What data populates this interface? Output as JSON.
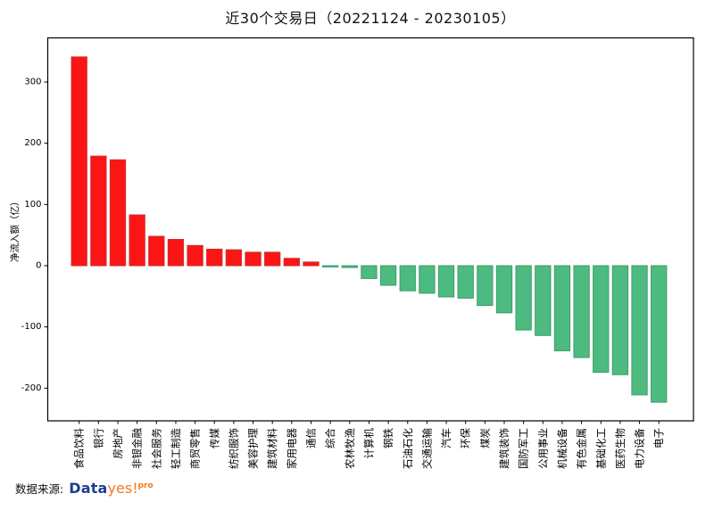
{
  "title": "近30个交易日（20221124 - 20230105）",
  "footer": {
    "source_label": "数据来源:",
    "brand_part1": "Data",
    "brand_part2": "yes!",
    "brand_sup": "pro"
  },
  "chart_data": {
    "type": "bar",
    "title": "近30个交易日（20221124 - 20230105）",
    "xlabel": "",
    "ylabel": "净流入额（亿）",
    "categories": [
      "食品饮料",
      "银行",
      "房地产",
      "非银金融",
      "社会服务",
      "轻工制造",
      "商贸零售",
      "传媒",
      "纺织服饰",
      "美容护理",
      "建筑材料",
      "家用电器",
      "通信",
      "综合",
      "农林牧渔",
      "计算机",
      "钢铁",
      "石油石化",
      "交通运输",
      "汽车",
      "环保",
      "煤炭",
      "建筑装饰",
      "国防军工",
      "公用事业",
      "机械设备",
      "有色金属",
      "基础化工",
      "医药生物",
      "电力设备",
      "电子"
    ],
    "values": [
      341,
      179,
      173,
      83,
      48,
      43,
      33,
      27,
      26,
      22,
      22,
      12,
      6,
      -2,
      -3,
      -21,
      -32,
      -41,
      -45,
      -51,
      -53,
      -65,
      -77,
      -105,
      -114,
      -139,
      -150,
      -174,
      -178,
      -211,
      -223
    ],
    "yticks": [
      300,
      200,
      100,
      0,
      -100,
      -200
    ],
    "ylim": [
      -253,
      372
    ],
    "grid": false,
    "legend_position": "none",
    "positive_color": "#fb1515",
    "positive_edge_color": "#d02e2e",
    "negative_color": "#4dba7f",
    "negative_edge_color": "#3b9e6b",
    "axis_color": "#000000"
  }
}
